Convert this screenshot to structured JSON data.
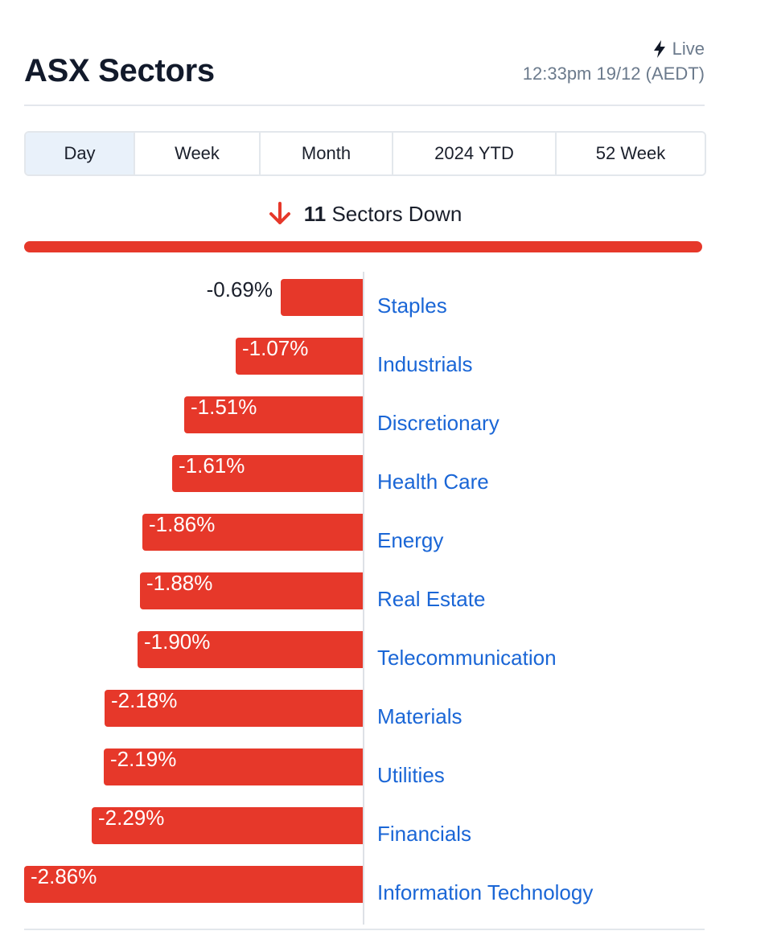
{
  "header": {
    "title": "ASX Sectors",
    "live_label": "Live",
    "timestamp": "12:33pm 19/12 (AEDT)"
  },
  "tabs": [
    {
      "label": "Day",
      "active": true
    },
    {
      "label": "Week",
      "active": false
    },
    {
      "label": "Month",
      "active": false
    },
    {
      "label": "2024 YTD",
      "active": false
    },
    {
      "label": "52 Week",
      "active": false
    }
  ],
  "summary": {
    "count": "11",
    "text": "Sectors Down",
    "fraction_down": 1.0
  },
  "colors": {
    "negative": "#e6382a",
    "link": "#1a66d6"
  },
  "icons": {
    "live": "bolt-icon",
    "summary": "down-arrow-icon"
  },
  "chart_data": {
    "type": "bar",
    "orientation": "horizontal",
    "categories": [
      "Staples",
      "Industrials",
      "Discretionary",
      "Health Care",
      "Energy",
      "Real Estate",
      "Telecommunication",
      "Materials",
      "Utilities",
      "Financials",
      "Information Technology"
    ],
    "values": [
      -0.69,
      -1.07,
      -1.51,
      -1.61,
      -1.86,
      -1.88,
      -1.9,
      -2.18,
      -2.19,
      -2.29,
      -2.86
    ],
    "labels": [
      "-0.69%",
      "-1.07%",
      "-1.51%",
      "-1.61%",
      "-1.86%",
      "-1.88%",
      "-1.90%",
      "-2.18%",
      "-2.19%",
      "-2.29%",
      "-2.86%"
    ],
    "xlim": [
      -2.86,
      0
    ],
    "grid": false
  }
}
